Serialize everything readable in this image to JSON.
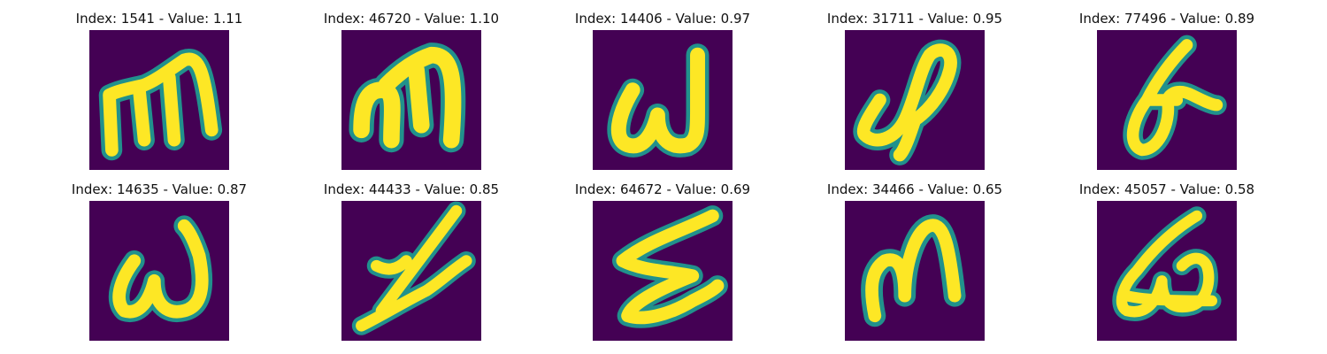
{
  "colors": {
    "background": "#440154",
    "stroke_edge": "#21918c",
    "stroke_mid": "#5ec962",
    "stroke_core": "#fde725"
  },
  "panels": [
    {
      "title": "Index: 1541 - Value: 1.11"
    },
    {
      "title": "Index: 46720 - Value: 1.10"
    },
    {
      "title": "Index: 14406 - Value: 0.97"
    },
    {
      "title": "Index: 31711 - Value: 0.95"
    },
    {
      "title": "Index: 77496 - Value: 0.89"
    },
    {
      "title": "Index: 14635 - Value: 0.87"
    },
    {
      "title": "Index: 44433 - Value: 0.85"
    },
    {
      "title": "Index: 64672 - Value: 0.69"
    },
    {
      "title": "Index: 34466 - Value: 0.65"
    },
    {
      "title": "Index: 45057 - Value: 0.58"
    }
  ]
}
